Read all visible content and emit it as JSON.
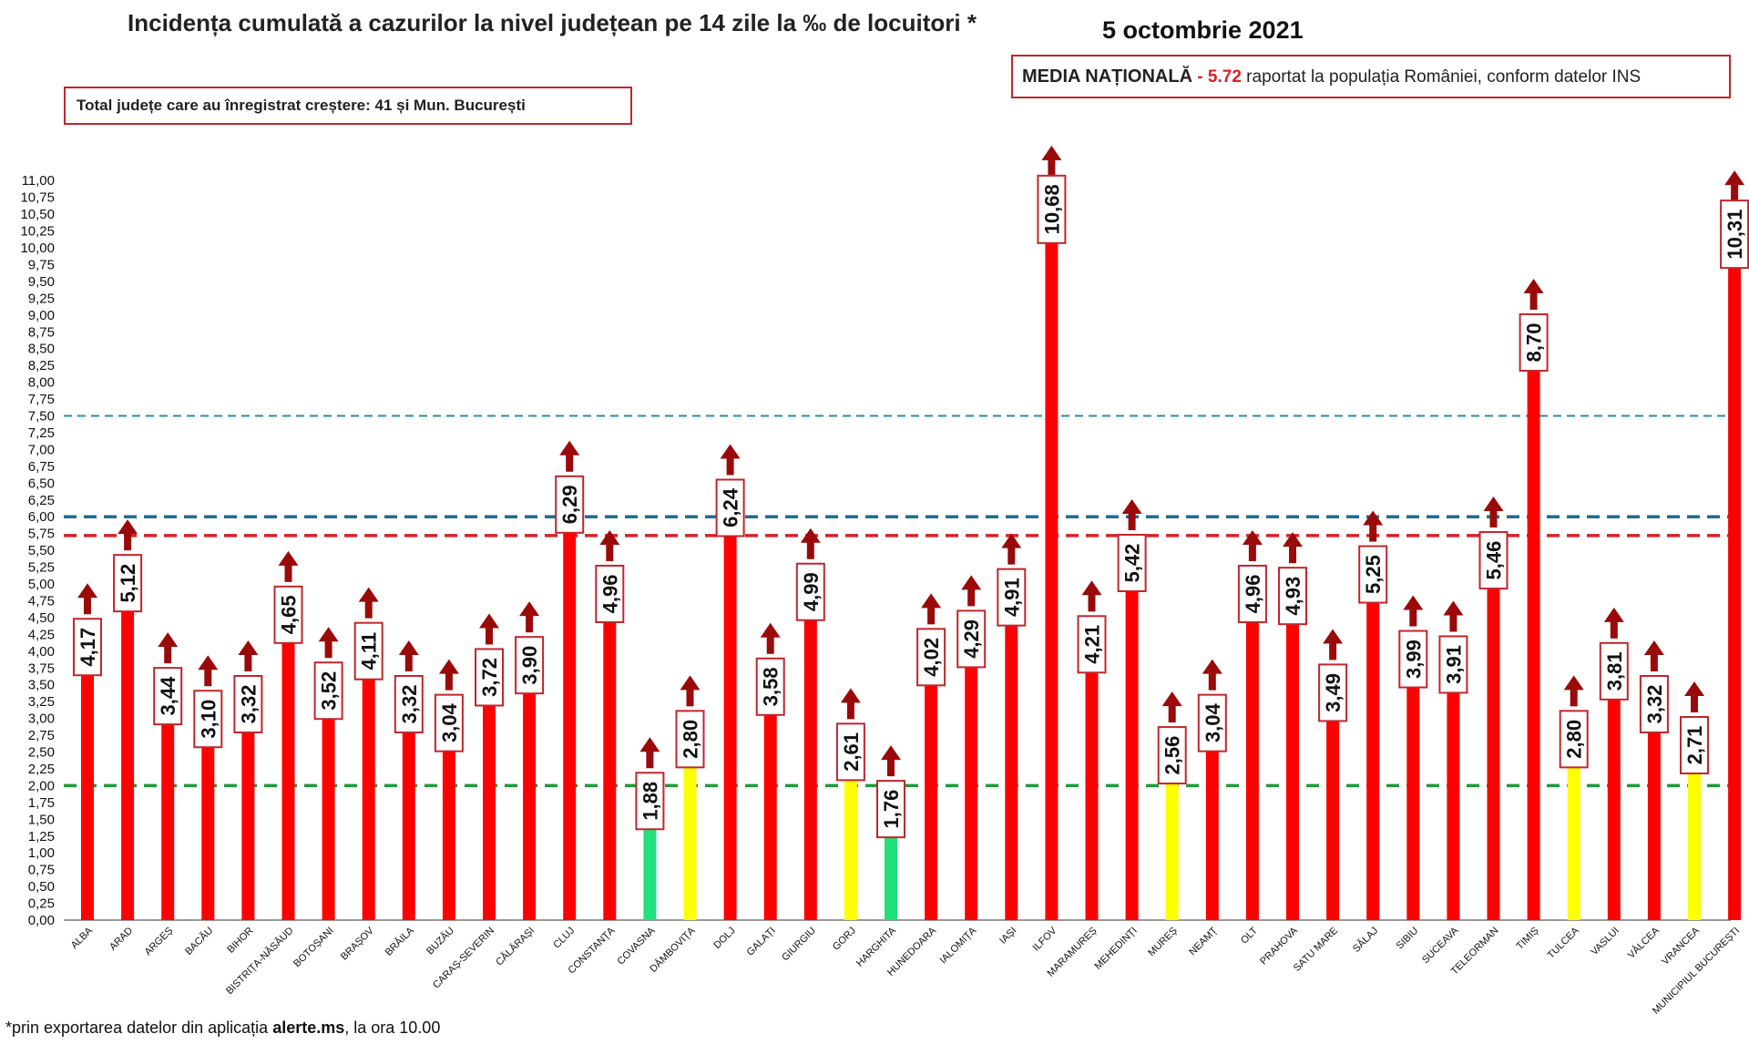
{
  "header": {
    "title": "Incidența cumulată a cazurilor la nivel județean pe 14 zile la ‰ de locuitori *",
    "date": "5 octombrie 2021"
  },
  "info_box": {
    "text": "Total județe care au înregistrat creștere:  41 și Mun. București"
  },
  "media_box": {
    "label": "MEDIA NAȚIONALĂ",
    "dash": " - ",
    "value": "5.72",
    "rest": " raportat la populația României, conform datelor INS"
  },
  "footnote": {
    "prefix": "*prin exportarea datelor din aplicația ",
    "app": "alerte.ms",
    "suffix": ", la ora 10.00"
  },
  "colors": {
    "red": "#ff0000",
    "yellow": "#ffff00",
    "green": "#22e07a",
    "arrow": "#9a0a0a",
    "label_border": "#c0262c",
    "line_red": "#d8202a",
    "line_blue": "#1f6b94",
    "line_teal": "#2a8aa8",
    "line_green": "#1e9a3a"
  },
  "chart_data": {
    "type": "bar",
    "ylim": [
      0,
      11
    ],
    "ytick_step": 0.25,
    "reference_lines": [
      {
        "value": 7.5,
        "color": "teal",
        "style": "thin-dashed"
      },
      {
        "value": 6.0,
        "color": "blue",
        "style": "thick-dashed"
      },
      {
        "value": 5.72,
        "color": "red",
        "style": "thick-dashed"
      },
      {
        "value": 2.0,
        "color": "green",
        "style": "thick-dashed"
      }
    ],
    "bars": [
      {
        "category": "ALBA",
        "value": 4.17,
        "label": "4,17",
        "color": "red",
        "trend": "up"
      },
      {
        "category": "ARAD",
        "value": 5.12,
        "label": "5,12",
        "color": "red",
        "trend": "up"
      },
      {
        "category": "ARGEȘ",
        "value": 3.44,
        "label": "3,44",
        "color": "red",
        "trend": "up"
      },
      {
        "category": "BACĂU",
        "value": 3.1,
        "label": "3,10",
        "color": "red",
        "trend": "up"
      },
      {
        "category": "BIHOR",
        "value": 3.32,
        "label": "3,32",
        "color": "red",
        "trend": "up"
      },
      {
        "category": "BISTRIȚA-NĂSĂUD",
        "value": 4.65,
        "label": "4,65",
        "color": "red",
        "trend": "up"
      },
      {
        "category": "BOTOȘANI",
        "value": 3.52,
        "label": "3,52",
        "color": "red",
        "trend": "up"
      },
      {
        "category": "BRAȘOV",
        "value": 4.11,
        "label": "4,11",
        "color": "red",
        "trend": "up"
      },
      {
        "category": "BRĂILA",
        "value": 3.32,
        "label": "3,32",
        "color": "red",
        "trend": "up"
      },
      {
        "category": "BUZĂU",
        "value": 3.04,
        "label": "3,04",
        "color": "red",
        "trend": "up"
      },
      {
        "category": "CARAȘ-SEVERIN",
        "value": 3.72,
        "label": "3,72",
        "color": "red",
        "trend": "up"
      },
      {
        "category": "CĂLĂRAȘI",
        "value": 3.9,
        "label": "3,90",
        "color": "red",
        "trend": "up"
      },
      {
        "category": "CLUJ",
        "value": 6.29,
        "label": "6,29",
        "color": "red",
        "trend": "up"
      },
      {
        "category": "CONSTANȚA",
        "value": 4.96,
        "label": "4,96",
        "color": "red",
        "trend": "up"
      },
      {
        "category": "COVASNA",
        "value": 1.88,
        "label": "1,88",
        "color": "green",
        "trend": "up"
      },
      {
        "category": "DÂMBOVIȚA",
        "value": 2.8,
        "label": "2,80",
        "color": "yellow",
        "trend": "up"
      },
      {
        "category": "DOLJ",
        "value": 6.24,
        "label": "6,24",
        "color": "red",
        "trend": "up"
      },
      {
        "category": "GALAȚI",
        "value": 3.58,
        "label": "3,58",
        "color": "red",
        "trend": "up"
      },
      {
        "category": "GIURGIU",
        "value": 4.99,
        "label": "4,99",
        "color": "red",
        "trend": "up"
      },
      {
        "category": "GORJ",
        "value": 2.61,
        "label": "2,61",
        "color": "yellow",
        "trend": "up"
      },
      {
        "category": "HARGHITA",
        "value": 1.76,
        "label": "1,76",
        "color": "green",
        "trend": "up"
      },
      {
        "category": "HUNEDOARA",
        "value": 4.02,
        "label": "4,02",
        "color": "red",
        "trend": "up"
      },
      {
        "category": "IALOMIȚA",
        "value": 4.29,
        "label": "4,29",
        "color": "red",
        "trend": "up"
      },
      {
        "category": "IAȘI",
        "value": 4.91,
        "label": "4,91",
        "color": "red",
        "trend": "up"
      },
      {
        "category": "ILFOV",
        "value": 10.68,
        "label": "10,68",
        "color": "red",
        "trend": "up"
      },
      {
        "category": "MARAMUREȘ",
        "value": 4.21,
        "label": "4,21",
        "color": "red",
        "trend": "up"
      },
      {
        "category": "MEHEDINȚI",
        "value": 5.42,
        "label": "5,42",
        "color": "red",
        "trend": "up"
      },
      {
        "category": "MUREȘ",
        "value": 2.56,
        "label": "2,56",
        "color": "yellow",
        "trend": "up"
      },
      {
        "category": "NEAMȚ",
        "value": 3.04,
        "label": "3,04",
        "color": "red",
        "trend": "up"
      },
      {
        "category": "OLT",
        "value": 4.96,
        "label": "4,96",
        "color": "red",
        "trend": "up"
      },
      {
        "category": "PRAHOVA",
        "value": 4.93,
        "label": "4,93",
        "color": "red",
        "trend": "up"
      },
      {
        "category": "SATU MARE",
        "value": 3.49,
        "label": "3,49",
        "color": "red",
        "trend": "up"
      },
      {
        "category": "SĂLAJ",
        "value": 5.25,
        "label": "5,25",
        "color": "red",
        "trend": "up"
      },
      {
        "category": "SIBIU",
        "value": 3.99,
        "label": "3,99",
        "color": "red",
        "trend": "up"
      },
      {
        "category": "SUCEAVA",
        "value": 3.91,
        "label": "3,91",
        "color": "red",
        "trend": "up"
      },
      {
        "category": "TELEORMAN",
        "value": 5.46,
        "label": "5,46",
        "color": "red",
        "trend": "up"
      },
      {
        "category": "TIMIȘ",
        "value": 8.7,
        "label": "8,70",
        "color": "red",
        "trend": "up"
      },
      {
        "category": "TULCEA",
        "value": 2.8,
        "label": "2,80",
        "color": "yellow",
        "trend": "up"
      },
      {
        "category": "VASLUI",
        "value": 3.81,
        "label": "3,81",
        "color": "red",
        "trend": "up"
      },
      {
        "category": "VÂLCEA",
        "value": 3.32,
        "label": "3,32",
        "color": "red",
        "trend": "up"
      },
      {
        "category": "VRANCEA",
        "value": 2.71,
        "label": "2,71",
        "color": "yellow",
        "trend": "up"
      },
      {
        "category": "MUNICIPIUL BUCUREȘTI",
        "value": 10.31,
        "label": "10,31",
        "color": "red",
        "trend": "up"
      }
    ]
  }
}
